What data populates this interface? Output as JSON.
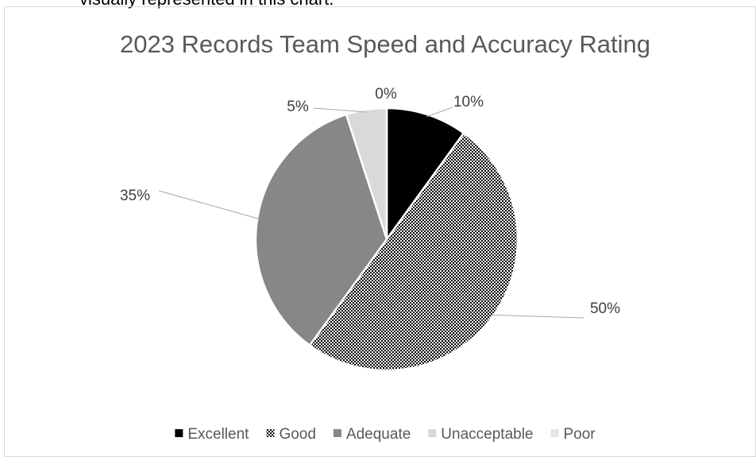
{
  "page_text": "visually represented in this chart.",
  "chart_data": {
    "type": "pie",
    "title": "2023 Records Team Speed and Accuracy Rating",
    "categories": [
      "Excellent",
      "Good",
      "Adequate",
      "Unacceptable",
      "Poor"
    ],
    "values": [
      10,
      50,
      35,
      5,
      0
    ],
    "value_labels": [
      "10%",
      "50%",
      "35%",
      "5%",
      "0%"
    ],
    "colors": [
      "#000000",
      "#000000",
      "#878787",
      "#d9d9d9",
      "#e4e4e4"
    ],
    "fill_patterns": [
      null,
      "dots",
      null,
      null,
      null
    ],
    "legend": "bottom"
  }
}
